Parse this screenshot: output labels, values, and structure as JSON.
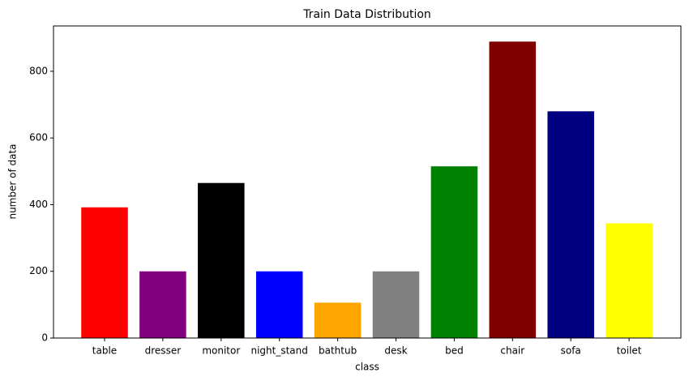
{
  "chart_data": {
    "type": "bar",
    "title": "Train Data Distribution",
    "x_label": "class",
    "y_label": "number of data",
    "categories": [
      "table",
      "dresser",
      "monitor",
      "night_stand",
      "bathtub",
      "desk",
      "bed",
      "chair",
      "sofa",
      "toilet"
    ],
    "values": [
      392,
      200,
      465,
      200,
      106,
      200,
      515,
      889,
      680,
      344
    ],
    "colors": [
      "#ff0000",
      "#800080",
      "#000000",
      "#0000ff",
      "#ffa500",
      "#808080",
      "#008000",
      "#800000",
      "#000080",
      "#ffff00"
    ],
    "ylim": [
      0,
      936
    ],
    "yticks": [
      0,
      200,
      400,
      600,
      800
    ],
    "grid": false
  }
}
